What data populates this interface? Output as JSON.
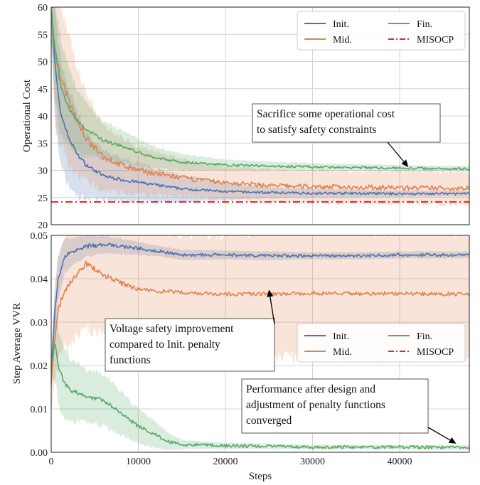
{
  "chart_data": [
    {
      "type": "line",
      "ylabel": "Operational Cost",
      "xlim": [
        0,
        48000
      ],
      "ylim": [
        20,
        60
      ],
      "yticks": [
        20,
        25,
        30,
        35,
        40,
        45,
        50,
        55,
        60
      ],
      "grid": true,
      "legend": {
        "placement": "top-right",
        "columns": 2
      },
      "series": [
        {
          "name": "Init.",
          "color": "#4c72b0",
          "style": "solid",
          "x": [
            0,
            400,
            1000,
            2000,
            3000,
            4000,
            5000,
            6000,
            8000,
            10000,
            12000,
            15000,
            20000,
            25000,
            30000,
            35000,
            40000,
            45000,
            48000
          ],
          "values": [
            60,
            50,
            41,
            36,
            33,
            31,
            30,
            29,
            28.3,
            27.8,
            27.3,
            26.6,
            26.1,
            25.9,
            25.8,
            25.75,
            25.7,
            25.7,
            25.7
          ],
          "band": [
            5,
            10,
            10,
            9,
            8,
            6,
            5,
            4.5,
            4,
            3.5,
            3,
            2.5,
            1.5,
            1,
            0.8,
            0.7,
            0.6,
            0.5,
            0.5
          ]
        },
        {
          "name": "Mid.",
          "color": "#dd8452",
          "style": "solid",
          "x": [
            0,
            400,
            1000,
            2000,
            3000,
            4000,
            5000,
            6000,
            8000,
            10000,
            12000,
            15000,
            20000,
            25000,
            30000,
            35000,
            40000,
            45000,
            48000
          ],
          "values": [
            60,
            52,
            48,
            43,
            39,
            36,
            34,
            32.5,
            31,
            30,
            29.4,
            28.6,
            27.7,
            27.2,
            27,
            26.9,
            26.8,
            26.7,
            26.7
          ],
          "band": [
            5,
            12,
            13,
            12,
            10,
            8,
            7,
            6,
            5,
            4.5,
            4,
            3.5,
            3,
            3,
            3,
            3,
            3,
            3,
            3
          ]
        },
        {
          "name": "Fin.",
          "color": "#55a868",
          "style": "solid",
          "x": [
            0,
            400,
            1000,
            2000,
            3000,
            4000,
            5000,
            6000,
            8000,
            10000,
            12000,
            15000,
            20000,
            25000,
            30000,
            35000,
            40000,
            45000,
            48000
          ],
          "values": [
            60,
            53,
            46,
            41.5,
            39,
            37.5,
            36.5,
            35.5,
            34.5,
            33.3,
            32.3,
            31.5,
            31,
            30.8,
            30.6,
            30.5,
            30.4,
            30.3,
            30.3
          ],
          "band": [
            5,
            9,
            9,
            7,
            6,
            5,
            4,
            3.5,
            3,
            2.5,
            2,
            1.5,
            1,
            0.8,
            0.7,
            0.6,
            0.6,
            0.5,
            0.5
          ]
        },
        {
          "name": "MISOCP",
          "color": "#e32222",
          "style": "dashdot",
          "x": [
            0,
            48000
          ],
          "values": [
            24.2,
            24.2
          ]
        }
      ],
      "annotations": [
        {
          "text_lines": [
            "Sacrifice some operational cost",
            "to satisfy safety constraints"
          ],
          "arrow_to": [
            41000,
            30.6
          ]
        }
      ]
    },
    {
      "type": "line",
      "xlabel": "Steps",
      "ylabel": "Step Average VVR",
      "xlim": [
        0,
        48000
      ],
      "ylim": [
        0,
        0.05
      ],
      "xticks": [
        0,
        10000,
        20000,
        30000,
        40000
      ],
      "ytick_labels": [
        "0.00",
        "0.01",
        "0.02",
        "0.03",
        "0.04",
        "0.05"
      ],
      "grid": true,
      "legend": {
        "placement": "center-right",
        "columns": 2
      },
      "series": [
        {
          "name": "Init.",
          "color": "#4c72b0",
          "style": "solid",
          "x": [
            0,
            400,
            800,
            1500,
            2500,
            4000,
            6000,
            8000,
            10000,
            12000,
            15000,
            20000,
            25000,
            30000,
            35000,
            40000,
            45000,
            48000
          ],
          "values": [
            0.018,
            0.032,
            0.04,
            0.045,
            0.0465,
            0.0475,
            0.0478,
            0.0475,
            0.047,
            0.0465,
            0.0455,
            0.0455,
            0.0453,
            0.0453,
            0.0453,
            0.0455,
            0.0455,
            0.0455
          ],
          "band": [
            0.003,
            0.006,
            0.005,
            0.004,
            0.003,
            0.0025,
            0.002,
            0.0018,
            0.0015,
            0.0012,
            0.0012,
            0.001,
            0.001,
            0.0008,
            0.0008,
            0.0008,
            0.0008,
            0.0008
          ]
        },
        {
          "name": "Mid.",
          "color": "#dd8452",
          "style": "solid",
          "x": [
            0,
            400,
            800,
            1500,
            2500,
            4000,
            6000,
            8000,
            10000,
            12000,
            15000,
            20000,
            25000,
            30000,
            35000,
            40000,
            45000,
            48000
          ],
          "values": [
            0.016,
            0.026,
            0.033,
            0.037,
            0.04,
            0.0435,
            0.041,
            0.039,
            0.0375,
            0.0372,
            0.0368,
            0.0365,
            0.0365,
            0.0367,
            0.0366,
            0.0366,
            0.0365,
            0.0365
          ],
          "band": [
            0.006,
            0.01,
            0.012,
            0.012,
            0.015,
            0.015,
            0.014,
            0.014,
            0.013,
            0.0135,
            0.014,
            0.014,
            0.0145,
            0.0145,
            0.0145,
            0.0145,
            0.0145,
            0.0145
          ]
        },
        {
          "name": "Fin.",
          "color": "#55a868",
          "style": "solid",
          "x": [
            0,
            400,
            800,
            1500,
            2500,
            4000,
            6000,
            8000,
            10000,
            12000,
            13500,
            15000,
            20000,
            25000,
            30000,
            35000,
            40000,
            45000,
            48000
          ],
          "values": [
            0.02,
            0.026,
            0.02,
            0.016,
            0.014,
            0.013,
            0.012,
            0.009,
            0.006,
            0.004,
            0.0025,
            0.0018,
            0.0015,
            0.0014,
            0.0012,
            0.0012,
            0.0012,
            0.0011,
            0.0011
          ],
          "band": [
            0.004,
            0.008,
            0.009,
            0.008,
            0.007,
            0.006,
            0.006,
            0.005,
            0.004,
            0.003,
            0.002,
            0.001,
            0.0007,
            0.0006,
            0.0005,
            0.0005,
            0.0005,
            0.0005,
            0.0005
          ]
        },
        {
          "name": "MISOCP",
          "color": "#e32222",
          "style": "dashdot",
          "x": [],
          "values": []
        }
      ],
      "annotations": [
        {
          "text_lines": [
            "Voltage safety improvement",
            "compared to Init. penalty",
            "functions"
          ],
          "arrow_to": [
            25000,
            0.0375
          ]
        },
        {
          "text_lines": [
            "Performance after design and",
            "adjustment of penalty functions",
            "converged"
          ],
          "arrow_to": [
            46500,
            0.002
          ]
        }
      ]
    }
  ]
}
